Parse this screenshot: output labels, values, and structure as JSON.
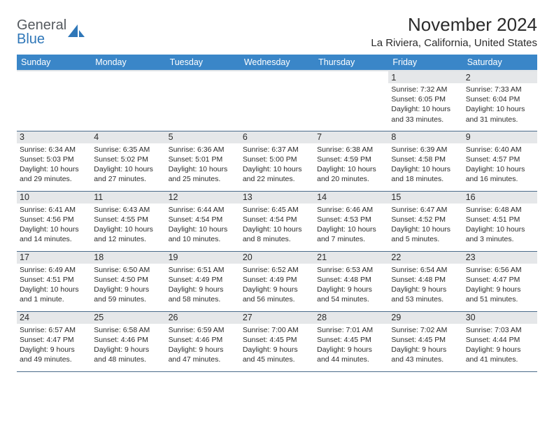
{
  "brand": {
    "part1": "General",
    "part2": "Blue"
  },
  "title": "November 2024",
  "location": "La Riviera, California, United States",
  "columns": [
    "Sunday",
    "Monday",
    "Tuesday",
    "Wednesday",
    "Thursday",
    "Friday",
    "Saturday"
  ],
  "colors": {
    "header_bg": "#3a86c8",
    "header_fg": "#ffffff",
    "daynum_bg": "#e5e7e9",
    "border": "#4a6b8a",
    "text": "#2b2b2b",
    "logo_gray": "#555a5f",
    "logo_blue": "#2f77b8"
  },
  "typography": {
    "body_fontsize_pt": 10.5,
    "title_fontsize_pt": 26,
    "header_fontsize_pt": 12.5
  },
  "weeks": [
    [
      {
        "day": "",
        "lines": [
          "",
          "",
          "",
          ""
        ]
      },
      {
        "day": "",
        "lines": [
          "",
          "",
          "",
          ""
        ]
      },
      {
        "day": "",
        "lines": [
          "",
          "",
          "",
          ""
        ]
      },
      {
        "day": "",
        "lines": [
          "",
          "",
          "",
          ""
        ]
      },
      {
        "day": "",
        "lines": [
          "",
          "",
          "",
          ""
        ]
      },
      {
        "day": "1",
        "lines": [
          "Sunrise: 7:32 AM",
          "Sunset: 6:05 PM",
          "Daylight: 10 hours",
          "and 33 minutes."
        ]
      },
      {
        "day": "2",
        "lines": [
          "Sunrise: 7:33 AM",
          "Sunset: 6:04 PM",
          "Daylight: 10 hours",
          "and 31 minutes."
        ]
      }
    ],
    [
      {
        "day": "3",
        "lines": [
          "Sunrise: 6:34 AM",
          "Sunset: 5:03 PM",
          "Daylight: 10 hours",
          "and 29 minutes."
        ]
      },
      {
        "day": "4",
        "lines": [
          "Sunrise: 6:35 AM",
          "Sunset: 5:02 PM",
          "Daylight: 10 hours",
          "and 27 minutes."
        ]
      },
      {
        "day": "5",
        "lines": [
          "Sunrise: 6:36 AM",
          "Sunset: 5:01 PM",
          "Daylight: 10 hours",
          "and 25 minutes."
        ]
      },
      {
        "day": "6",
        "lines": [
          "Sunrise: 6:37 AM",
          "Sunset: 5:00 PM",
          "Daylight: 10 hours",
          "and 22 minutes."
        ]
      },
      {
        "day": "7",
        "lines": [
          "Sunrise: 6:38 AM",
          "Sunset: 4:59 PM",
          "Daylight: 10 hours",
          "and 20 minutes."
        ]
      },
      {
        "day": "8",
        "lines": [
          "Sunrise: 6:39 AM",
          "Sunset: 4:58 PM",
          "Daylight: 10 hours",
          "and 18 minutes."
        ]
      },
      {
        "day": "9",
        "lines": [
          "Sunrise: 6:40 AM",
          "Sunset: 4:57 PM",
          "Daylight: 10 hours",
          "and 16 minutes."
        ]
      }
    ],
    [
      {
        "day": "10",
        "lines": [
          "Sunrise: 6:41 AM",
          "Sunset: 4:56 PM",
          "Daylight: 10 hours",
          "and 14 minutes."
        ]
      },
      {
        "day": "11",
        "lines": [
          "Sunrise: 6:43 AM",
          "Sunset: 4:55 PM",
          "Daylight: 10 hours",
          "and 12 minutes."
        ]
      },
      {
        "day": "12",
        "lines": [
          "Sunrise: 6:44 AM",
          "Sunset: 4:54 PM",
          "Daylight: 10 hours",
          "and 10 minutes."
        ]
      },
      {
        "day": "13",
        "lines": [
          "Sunrise: 6:45 AM",
          "Sunset: 4:54 PM",
          "Daylight: 10 hours",
          "and 8 minutes."
        ]
      },
      {
        "day": "14",
        "lines": [
          "Sunrise: 6:46 AM",
          "Sunset: 4:53 PM",
          "Daylight: 10 hours",
          "and 7 minutes."
        ]
      },
      {
        "day": "15",
        "lines": [
          "Sunrise: 6:47 AM",
          "Sunset: 4:52 PM",
          "Daylight: 10 hours",
          "and 5 minutes."
        ]
      },
      {
        "day": "16",
        "lines": [
          "Sunrise: 6:48 AM",
          "Sunset: 4:51 PM",
          "Daylight: 10 hours",
          "and 3 minutes."
        ]
      }
    ],
    [
      {
        "day": "17",
        "lines": [
          "Sunrise: 6:49 AM",
          "Sunset: 4:51 PM",
          "Daylight: 10 hours",
          "and 1 minute."
        ]
      },
      {
        "day": "18",
        "lines": [
          "Sunrise: 6:50 AM",
          "Sunset: 4:50 PM",
          "Daylight: 9 hours",
          "and 59 minutes."
        ]
      },
      {
        "day": "19",
        "lines": [
          "Sunrise: 6:51 AM",
          "Sunset: 4:49 PM",
          "Daylight: 9 hours",
          "and 58 minutes."
        ]
      },
      {
        "day": "20",
        "lines": [
          "Sunrise: 6:52 AM",
          "Sunset: 4:49 PM",
          "Daylight: 9 hours",
          "and 56 minutes."
        ]
      },
      {
        "day": "21",
        "lines": [
          "Sunrise: 6:53 AM",
          "Sunset: 4:48 PM",
          "Daylight: 9 hours",
          "and 54 minutes."
        ]
      },
      {
        "day": "22",
        "lines": [
          "Sunrise: 6:54 AM",
          "Sunset: 4:48 PM",
          "Daylight: 9 hours",
          "and 53 minutes."
        ]
      },
      {
        "day": "23",
        "lines": [
          "Sunrise: 6:56 AM",
          "Sunset: 4:47 PM",
          "Daylight: 9 hours",
          "and 51 minutes."
        ]
      }
    ],
    [
      {
        "day": "24",
        "lines": [
          "Sunrise: 6:57 AM",
          "Sunset: 4:47 PM",
          "Daylight: 9 hours",
          "and 49 minutes."
        ]
      },
      {
        "day": "25",
        "lines": [
          "Sunrise: 6:58 AM",
          "Sunset: 4:46 PM",
          "Daylight: 9 hours",
          "and 48 minutes."
        ]
      },
      {
        "day": "26",
        "lines": [
          "Sunrise: 6:59 AM",
          "Sunset: 4:46 PM",
          "Daylight: 9 hours",
          "and 47 minutes."
        ]
      },
      {
        "day": "27",
        "lines": [
          "Sunrise: 7:00 AM",
          "Sunset: 4:45 PM",
          "Daylight: 9 hours",
          "and 45 minutes."
        ]
      },
      {
        "day": "28",
        "lines": [
          "Sunrise: 7:01 AM",
          "Sunset: 4:45 PM",
          "Daylight: 9 hours",
          "and 44 minutes."
        ]
      },
      {
        "day": "29",
        "lines": [
          "Sunrise: 7:02 AM",
          "Sunset: 4:45 PM",
          "Daylight: 9 hours",
          "and 43 minutes."
        ]
      },
      {
        "day": "30",
        "lines": [
          "Sunrise: 7:03 AM",
          "Sunset: 4:44 PM",
          "Daylight: 9 hours",
          "and 41 minutes."
        ]
      }
    ]
  ]
}
